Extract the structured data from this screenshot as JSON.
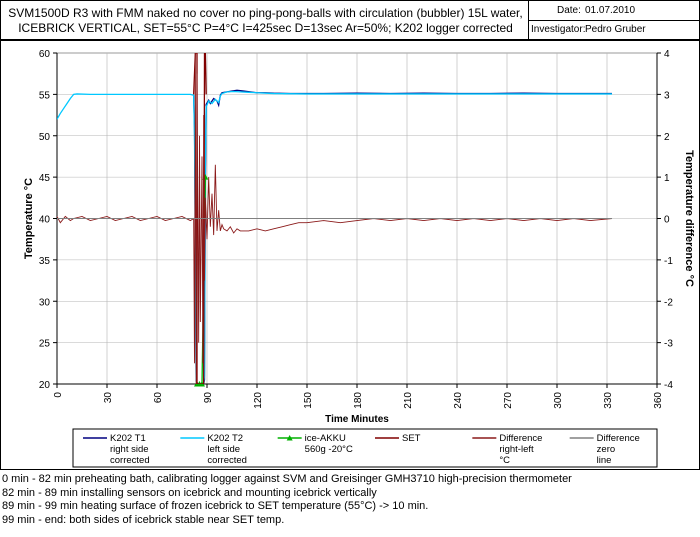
{
  "header": {
    "title_line1": "SVM1500D R3 with FMM naked no cover no ping-pong-balls with circulation (bubbler) 15L water,",
    "title_line2": "ICEBRICK VERTICAL, SET=55°C P=4°C I=425sec D=13sec Ar=50%; K202 logger corrected",
    "date_label": "Date:",
    "date_value": "01.07.2010",
    "investigator_label": "Investigator:",
    "investigator_value": "Pedro Gruber"
  },
  "chart_data": {
    "type": "line",
    "xlabel": "Time Minutes",
    "ylabel": "Temperature °C",
    "y2label": "Temperature difference °C",
    "xlim": [
      0,
      360
    ],
    "ylim": [
      20,
      60
    ],
    "y2lim": [
      -4,
      4
    ],
    "x_ticks": [
      0,
      30,
      60,
      90,
      120,
      150,
      180,
      210,
      240,
      270,
      300,
      330,
      360
    ],
    "y_ticks": [
      20,
      25,
      30,
      35,
      40,
      45,
      50,
      55,
      60
    ],
    "y2_ticks": [
      -4,
      -3,
      -2,
      -1,
      0,
      1,
      2,
      3,
      4
    ],
    "grid": true,
    "plot_background": "#ffffff",
    "grid_color": "#b4b4b4",
    "series": [
      {
        "name": "K202 T1 right side corrected",
        "axis": "left",
        "color": "#000080",
        "marker": false,
        "points": [
          [
            82,
            54.9
          ],
          [
            82.5,
            51
          ],
          [
            83,
            38
          ],
          [
            83.5,
            20.5
          ],
          [
            84,
            20
          ],
          [
            88,
            20
          ],
          [
            88.5,
            20.5
          ],
          [
            89,
            44
          ],
          [
            89.5,
            53.8
          ],
          [
            91,
            54.3
          ],
          [
            92,
            53.9
          ],
          [
            94,
            54.5
          ],
          [
            96,
            54.2
          ],
          [
            97,
            53.7
          ],
          [
            98,
            54.9
          ],
          [
            99,
            55.2
          ],
          [
            102,
            55.3
          ],
          [
            105,
            55.4
          ],
          [
            108,
            55.5
          ],
          [
            112,
            55.4
          ],
          [
            116,
            55.3
          ],
          [
            120,
            55.2
          ],
          [
            125,
            55.2
          ],
          [
            130,
            55.15
          ],
          [
            140,
            55.1
          ],
          [
            160,
            55.1
          ],
          [
            180,
            55.15
          ],
          [
            200,
            55.1
          ],
          [
            220,
            55.15
          ],
          [
            240,
            55.1
          ],
          [
            260,
            55.1
          ],
          [
            280,
            55.15
          ],
          [
            300,
            55.1
          ],
          [
            320,
            55.1
          ],
          [
            333,
            55.1
          ]
        ]
      },
      {
        "name": "K202 T2 left side corrected",
        "axis": "left",
        "color": "#00c8ff",
        "marker": false,
        "points": [
          [
            0,
            52
          ],
          [
            2,
            52.7
          ],
          [
            4,
            53.3
          ],
          [
            6,
            53.9
          ],
          [
            8,
            54.5
          ],
          [
            10,
            55.0
          ],
          [
            12,
            55.05
          ],
          [
            20,
            55.0
          ],
          [
            30,
            55.0
          ],
          [
            40,
            55.0
          ],
          [
            50,
            55.0
          ],
          [
            60,
            55.0
          ],
          [
            70,
            55.0
          ],
          [
            80,
            55.0
          ],
          [
            82,
            54.9
          ],
          [
            82.5,
            50
          ],
          [
            83,
            35
          ],
          [
            83.5,
            20.5
          ],
          [
            84,
            20
          ],
          [
            88,
            20
          ],
          [
            88.5,
            21
          ],
          [
            89,
            46
          ],
          [
            89.5,
            53.5
          ],
          [
            91,
            54.2
          ],
          [
            93,
            53.9
          ],
          [
            95,
            54.4
          ],
          [
            97,
            54.0
          ],
          [
            98,
            54.8
          ],
          [
            99,
            55.1
          ],
          [
            102,
            55.3
          ],
          [
            106,
            55.35
          ],
          [
            110,
            55.3
          ],
          [
            115,
            55.25
          ],
          [
            120,
            55.2
          ],
          [
            130,
            55.1
          ],
          [
            150,
            55.05
          ],
          [
            180,
            55.05
          ],
          [
            210,
            55.05
          ],
          [
            240,
            55.05
          ],
          [
            270,
            55.05
          ],
          [
            300,
            55.05
          ],
          [
            333,
            55.05
          ]
        ]
      },
      {
        "name": "ice-AKKU 560g -20°C",
        "axis": "left",
        "color": "#00b000",
        "marker": true,
        "points": [
          [
            84,
            20
          ],
          [
            85.5,
            20
          ],
          [
            87,
            20
          ],
          [
            89,
            45
          ]
        ]
      },
      {
        "name": "SET",
        "axis": "left",
        "color": "#800000",
        "marker": false,
        "points": [
          [
            82,
            55.0
          ],
          [
            83,
            60
          ],
          [
            84,
            60
          ],
          [
            84,
            20
          ],
          [
            88,
            20
          ],
          [
            88.5,
            60
          ],
          [
            89,
            60
          ],
          [
            89.5,
            55.0
          ]
        ]
      },
      {
        "name": "Difference right-left °C",
        "axis": "right",
        "color": "#8b1a1a",
        "marker": false,
        "points": [
          [
            0,
            0.05
          ],
          [
            2,
            -0.1
          ],
          [
            5,
            0.05
          ],
          [
            8,
            -0.05
          ],
          [
            10,
            0.0
          ],
          [
            15,
            0.05
          ],
          [
            20,
            -0.05
          ],
          [
            25,
            0.0
          ],
          [
            30,
            0.05
          ],
          [
            35,
            -0.05
          ],
          [
            40,
            0.0
          ],
          [
            45,
            0.05
          ],
          [
            50,
            -0.05
          ],
          [
            55,
            0.0
          ],
          [
            60,
            0.05
          ],
          [
            65,
            -0.05
          ],
          [
            70,
            0.0
          ],
          [
            75,
            0.05
          ],
          [
            80,
            -0.05
          ],
          [
            82,
            0.0
          ],
          [
            82.5,
            -3.5
          ],
          [
            83,
            4
          ],
          [
            83.5,
            -4
          ],
          [
            84,
            3.5
          ],
          [
            85,
            -3
          ],
          [
            85.5,
            2
          ],
          [
            86,
            -2.5
          ],
          [
            87,
            1.5
          ],
          [
            87.5,
            -3.5
          ],
          [
            88,
            2.5
          ],
          [
            88.5,
            -1.5
          ],
          [
            89,
            0.5
          ],
          [
            90,
            -0.5
          ],
          [
            91,
            1.0
          ],
          [
            92,
            -0.2
          ],
          [
            93,
            0.6
          ],
          [
            94,
            -0.4
          ],
          [
            95,
            1.3
          ],
          [
            96,
            -0.3
          ],
          [
            97,
            0.2
          ],
          [
            98,
            -0.3
          ],
          [
            99,
            -0.15
          ],
          [
            100,
            -0.25
          ],
          [
            102,
            -0.3
          ],
          [
            104,
            -0.2
          ],
          [
            106,
            -0.35
          ],
          [
            108,
            -0.25
          ],
          [
            110,
            -0.3
          ],
          [
            115,
            -0.3
          ],
          [
            120,
            -0.25
          ],
          [
            125,
            -0.3
          ],
          [
            130,
            -0.25
          ],
          [
            135,
            -0.2
          ],
          [
            140,
            -0.15
          ],
          [
            145,
            -0.1
          ],
          [
            150,
            -0.1
          ],
          [
            160,
            -0.05
          ],
          [
            170,
            -0.1
          ],
          [
            180,
            -0.05
          ],
          [
            190,
            0.0
          ],
          [
            200,
            -0.05
          ],
          [
            210,
            0.0
          ],
          [
            220,
            -0.05
          ],
          [
            230,
            0.0
          ],
          [
            240,
            -0.05
          ],
          [
            250,
            0.0
          ],
          [
            260,
            -0.05
          ],
          [
            270,
            0.0
          ],
          [
            280,
            -0.05
          ],
          [
            290,
            0.0
          ],
          [
            300,
            -0.05
          ],
          [
            310,
            0.0
          ],
          [
            320,
            -0.05
          ],
          [
            333,
            0.0
          ]
        ]
      },
      {
        "name": "Difference zero line",
        "axis": "right",
        "color": "#808080",
        "marker": false,
        "points": [
          [
            0,
            0
          ],
          [
            333,
            0
          ]
        ]
      }
    ],
    "legend": {
      "position": "bottom",
      "entries": [
        {
          "lines": [
            "K202 T1",
            "right side",
            "corrected"
          ],
          "color": "#000080",
          "marker": false
        },
        {
          "lines": [
            "K202 T2",
            "left side",
            "corrected"
          ],
          "color": "#00c8ff",
          "marker": false
        },
        {
          "lines": [
            "ice-AKKU",
            "560g -20°C"
          ],
          "color": "#00b000",
          "marker": true
        },
        {
          "lines": [
            "SET"
          ],
          "color": "#800000",
          "marker": false
        },
        {
          "lines": [
            "Difference",
            "right-left",
            "°C"
          ],
          "color": "#8b1a1a",
          "marker": false
        },
        {
          "lines": [
            "Difference",
            "zero",
            "line"
          ],
          "color": "#808080",
          "marker": false
        }
      ]
    }
  },
  "notes": [
    "0 min - 82 min preheating bath, calibrating logger against SVM and Greisinger GMH3710 high-precision thermometer",
    "82 min - 89 min installing sensors on icebrick and mounting icebrick vertically",
    "89 min - 99 min heating surface of frozen icebrick to SET temperature (55°C) -> 10 min.",
    "99 min - end: both sides of icebrick stable near SET temp."
  ]
}
